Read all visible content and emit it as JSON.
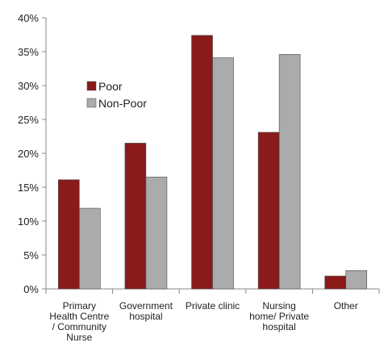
{
  "chart_data": {
    "type": "bar",
    "title": "",
    "xlabel": "",
    "ylabel": "",
    "categories": [
      [
        "Primary",
        "Health Centre",
        "/ Community",
        "Nurse"
      ],
      [
        "Government",
        "hospital"
      ],
      [
        "Private clinic"
      ],
      [
        "Nursing",
        "home/ Private",
        "hospital"
      ],
      [
        "Other"
      ]
    ],
    "series": [
      {
        "name": "Poor",
        "color": "#8B1A1A",
        "values": [
          16.1,
          21.5,
          37.4,
          23.1,
          1.9
        ]
      },
      {
        "name": "Non-Poor",
        "color": "#ABABAB",
        "values": [
          11.9,
          16.5,
          34.1,
          34.6,
          2.7
        ]
      }
    ],
    "ylim": [
      0,
      40
    ],
    "yticks": [
      0,
      5,
      10,
      15,
      20,
      25,
      30,
      35,
      40
    ],
    "y_tick_format": "percent",
    "grid": false,
    "legend_position": "top-left"
  }
}
